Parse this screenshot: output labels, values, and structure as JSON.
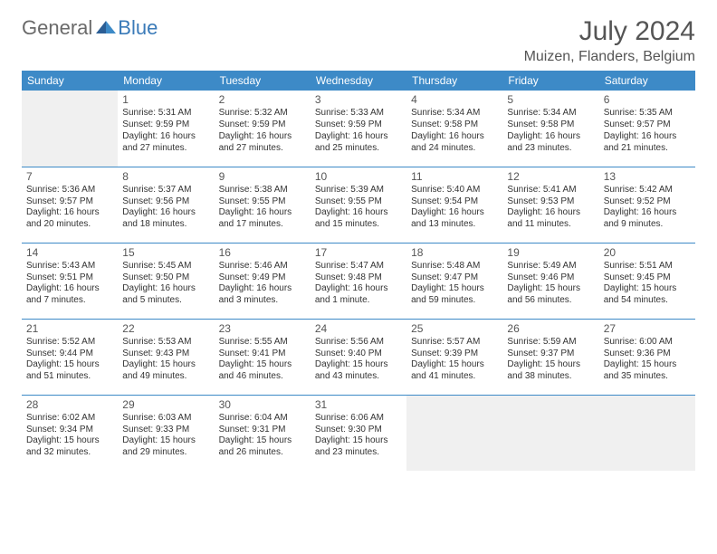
{
  "brand": {
    "part1": "General",
    "part2": "Blue"
  },
  "title": "July 2024",
  "location": "Muizen, Flanders, Belgium",
  "dayHeaders": [
    "Sunday",
    "Monday",
    "Tuesday",
    "Wednesday",
    "Thursday",
    "Friday",
    "Saturday"
  ],
  "colors": {
    "headerBg": "#3d8ac7",
    "headerText": "#ffffff",
    "rowBorder": "#3d8ac7",
    "blankBg": "#f0f0f0",
    "titleColor": "#555555",
    "bodyText": "#333333",
    "logoGray": "#6a6a6a",
    "logoBlue": "#3a7ab8"
  },
  "typography": {
    "titleSize": 30,
    "locationSize": 16,
    "headerSize": 12,
    "dayNumSize": 12,
    "cellSize": 10
  },
  "grid": {
    "cols": 7,
    "rows": 5,
    "startCol": 1
  },
  "days": [
    {
      "n": "1",
      "sr": "5:31 AM",
      "ss": "9:59 PM",
      "dl": "16 hours and 27 minutes."
    },
    {
      "n": "2",
      "sr": "5:32 AM",
      "ss": "9:59 PM",
      "dl": "16 hours and 27 minutes."
    },
    {
      "n": "3",
      "sr": "5:33 AM",
      "ss": "9:59 PM",
      "dl": "16 hours and 25 minutes."
    },
    {
      "n": "4",
      "sr": "5:34 AM",
      "ss": "9:58 PM",
      "dl": "16 hours and 24 minutes."
    },
    {
      "n": "5",
      "sr": "5:34 AM",
      "ss": "9:58 PM",
      "dl": "16 hours and 23 minutes."
    },
    {
      "n": "6",
      "sr": "5:35 AM",
      "ss": "9:57 PM",
      "dl": "16 hours and 21 minutes."
    },
    {
      "n": "7",
      "sr": "5:36 AM",
      "ss": "9:57 PM",
      "dl": "16 hours and 20 minutes."
    },
    {
      "n": "8",
      "sr": "5:37 AM",
      "ss": "9:56 PM",
      "dl": "16 hours and 18 minutes."
    },
    {
      "n": "9",
      "sr": "5:38 AM",
      "ss": "9:55 PM",
      "dl": "16 hours and 17 minutes."
    },
    {
      "n": "10",
      "sr": "5:39 AM",
      "ss": "9:55 PM",
      "dl": "16 hours and 15 minutes."
    },
    {
      "n": "11",
      "sr": "5:40 AM",
      "ss": "9:54 PM",
      "dl": "16 hours and 13 minutes."
    },
    {
      "n": "12",
      "sr": "5:41 AM",
      "ss": "9:53 PM",
      "dl": "16 hours and 11 minutes."
    },
    {
      "n": "13",
      "sr": "5:42 AM",
      "ss": "9:52 PM",
      "dl": "16 hours and 9 minutes."
    },
    {
      "n": "14",
      "sr": "5:43 AM",
      "ss": "9:51 PM",
      "dl": "16 hours and 7 minutes."
    },
    {
      "n": "15",
      "sr": "5:45 AM",
      "ss": "9:50 PM",
      "dl": "16 hours and 5 minutes."
    },
    {
      "n": "16",
      "sr": "5:46 AM",
      "ss": "9:49 PM",
      "dl": "16 hours and 3 minutes."
    },
    {
      "n": "17",
      "sr": "5:47 AM",
      "ss": "9:48 PM",
      "dl": "16 hours and 1 minute."
    },
    {
      "n": "18",
      "sr": "5:48 AM",
      "ss": "9:47 PM",
      "dl": "15 hours and 59 minutes."
    },
    {
      "n": "19",
      "sr": "5:49 AM",
      "ss": "9:46 PM",
      "dl": "15 hours and 56 minutes."
    },
    {
      "n": "20",
      "sr": "5:51 AM",
      "ss": "9:45 PM",
      "dl": "15 hours and 54 minutes."
    },
    {
      "n": "21",
      "sr": "5:52 AM",
      "ss": "9:44 PM",
      "dl": "15 hours and 51 minutes."
    },
    {
      "n": "22",
      "sr": "5:53 AM",
      "ss": "9:43 PM",
      "dl": "15 hours and 49 minutes."
    },
    {
      "n": "23",
      "sr": "5:55 AM",
      "ss": "9:41 PM",
      "dl": "15 hours and 46 minutes."
    },
    {
      "n": "24",
      "sr": "5:56 AM",
      "ss": "9:40 PM",
      "dl": "15 hours and 43 minutes."
    },
    {
      "n": "25",
      "sr": "5:57 AM",
      "ss": "9:39 PM",
      "dl": "15 hours and 41 minutes."
    },
    {
      "n": "26",
      "sr": "5:59 AM",
      "ss": "9:37 PM",
      "dl": "15 hours and 38 minutes."
    },
    {
      "n": "27",
      "sr": "6:00 AM",
      "ss": "9:36 PM",
      "dl": "15 hours and 35 minutes."
    },
    {
      "n": "28",
      "sr": "6:02 AM",
      "ss": "9:34 PM",
      "dl": "15 hours and 32 minutes."
    },
    {
      "n": "29",
      "sr": "6:03 AM",
      "ss": "9:33 PM",
      "dl": "15 hours and 29 minutes."
    },
    {
      "n": "30",
      "sr": "6:04 AM",
      "ss": "9:31 PM",
      "dl": "15 hours and 26 minutes."
    },
    {
      "n": "31",
      "sr": "6:06 AM",
      "ss": "9:30 PM",
      "dl": "15 hours and 23 minutes."
    }
  ],
  "labels": {
    "sunrise": "Sunrise:",
    "sunset": "Sunset:",
    "daylight": "Daylight:"
  }
}
